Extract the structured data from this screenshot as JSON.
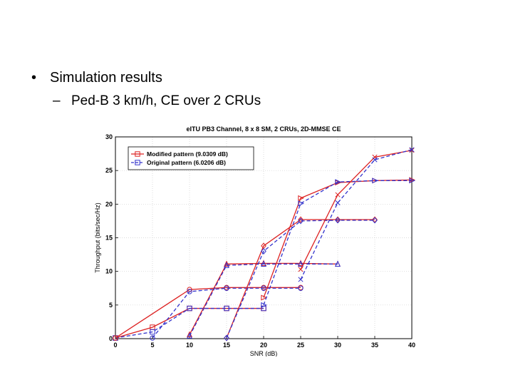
{
  "slide": {
    "bullet1": "Simulation results",
    "bullet2": "Ped-B 3 km/h, CE over 2 CRUs",
    "bullet_symbol": "•",
    "sub_bullet_symbol": "–"
  },
  "chart_data": {
    "type": "line",
    "title": "eITU PB3 Channel, 8 x 8 SM, 2 CRUs, 2D-MMSE CE",
    "xlabel": "SNR (dB)",
    "ylabel": "Throughput (bits/sec/Hz)",
    "xlim": [
      0,
      40
    ],
    "ylim": [
      0,
      30
    ],
    "xticks": [
      0,
      5,
      10,
      15,
      20,
      25,
      30,
      35,
      40
    ],
    "yticks": [
      0,
      5,
      10,
      15,
      20,
      25,
      30
    ],
    "grid": true,
    "legend_position": "top-left",
    "legend": [
      {
        "label": "Modified pattern (9.0309 dB)",
        "color": "#dd2222",
        "dash": "solid",
        "marker": "square"
      },
      {
        "label": "Original pattern (6.0206 dB)",
        "color": "#3333cc",
        "dash": "dashed",
        "marker": "square"
      }
    ],
    "series": [
      {
        "color": "#dd2222",
        "dash": "solid",
        "marker": "square",
        "x": [
          0,
          5,
          10,
          15,
          20
        ],
        "y": [
          0.1,
          1.7,
          4.5,
          4.5,
          4.5
        ]
      },
      {
        "color": "#3333cc",
        "dash": "dashed",
        "marker": "square",
        "x": [
          0,
          5,
          10,
          15,
          20
        ],
        "y": [
          0.1,
          1.0,
          4.5,
          4.5,
          4.5
        ]
      },
      {
        "color": "#dd2222",
        "dash": "solid",
        "marker": "circle",
        "x": [
          0,
          10,
          15,
          20,
          25
        ],
        "y": [
          0.1,
          7.3,
          7.6,
          7.6,
          7.6
        ]
      },
      {
        "color": "#3333cc",
        "dash": "dashed",
        "marker": "circle",
        "x": [
          5,
          10,
          15,
          20,
          25
        ],
        "y": [
          0.1,
          7.0,
          7.5,
          7.5,
          7.5
        ]
      },
      {
        "color": "#dd2222",
        "dash": "solid",
        "marker": "triangle-up",
        "x": [
          10,
          15,
          20,
          25,
          30
        ],
        "y": [
          0.6,
          11.1,
          11.2,
          11.2,
          11.1
        ]
      },
      {
        "color": "#3333cc",
        "dash": "dashed",
        "marker": "triangle-up",
        "x": [
          10,
          15,
          20,
          25,
          30
        ],
        "y": [
          0.4,
          10.9,
          11.1,
          11.1,
          11.1
        ]
      },
      {
        "color": "#dd2222",
        "dash": "solid",
        "marker": "diamond",
        "x": [
          15,
          20,
          25,
          30,
          35
        ],
        "y": [
          0.1,
          13.8,
          17.7,
          17.7,
          17.7
        ]
      },
      {
        "color": "#3333cc",
        "dash": "dashed",
        "marker": "diamond",
        "x": [
          15,
          20,
          25,
          30,
          35
        ],
        "y": [
          0.1,
          13.0,
          17.5,
          17.6,
          17.6
        ]
      },
      {
        "color": "#dd2222",
        "dash": "solid",
        "marker": "triangle-right",
        "x": [
          20,
          25,
          30,
          35,
          40
        ],
        "y": [
          6.1,
          20.9,
          23.2,
          23.5,
          23.6
        ]
      },
      {
        "color": "#3333cc",
        "dash": "dashed",
        "marker": "triangle-right",
        "x": [
          20,
          25,
          30,
          35,
          40
        ],
        "y": [
          5.0,
          20.1,
          23.3,
          23.5,
          23.5
        ]
      },
      {
        "color": "#dd2222",
        "dash": "solid",
        "marker": "x",
        "x": [
          25,
          30,
          35,
          40
        ],
        "y": [
          10.3,
          21.4,
          27.0,
          28.0
        ]
      },
      {
        "color": "#3333cc",
        "dash": "dashed",
        "marker": "x",
        "x": [
          25,
          30,
          35,
          40
        ],
        "y": [
          8.8,
          20.2,
          26.6,
          28.1
        ]
      }
    ]
  }
}
